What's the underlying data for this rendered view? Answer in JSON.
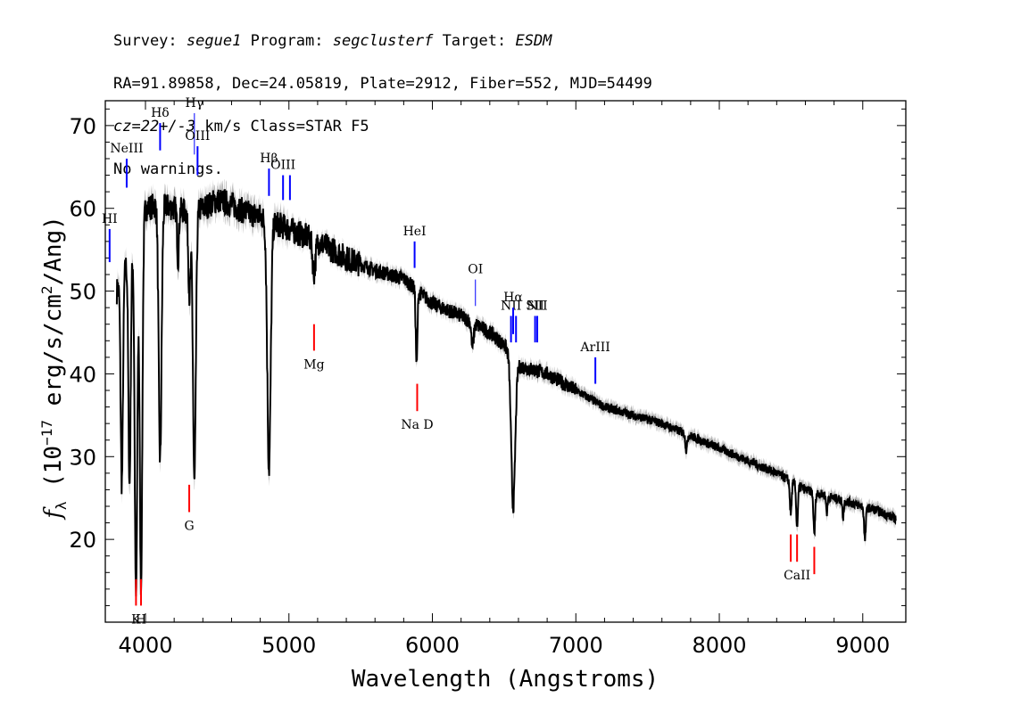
{
  "header": {
    "survey_key": "Survey:",
    "survey": "segue1",
    "program_key": "Program:",
    "program": "segclusterf",
    "target_key": "Target:",
    "target": "ESDM",
    "line2": "RA=91.89858, Dec=24.05819, Plate=2912, Fiber=552, MJD=54499",
    "cz": "cz=22+/-3",
    "cz_rest": "km/s Class=STAR F5",
    "line4": "No warnings."
  },
  "chart_data": {
    "type": "line",
    "xlabel": "Wavelength (Angstroms)",
    "ylabel": "fλ (10^-17 erg/s/cm^2/Ang)",
    "xlim": [
      3720,
      9300
    ],
    "ylim": [
      10,
      73
    ],
    "x_ticks": [
      4000,
      5000,
      6000,
      7000,
      8000,
      9000
    ],
    "y_ticks": [
      20,
      30,
      40,
      50,
      60,
      70
    ],
    "grid": false,
    "colors": {
      "spectrum": "#000000",
      "error_band": "#b0b0b0",
      "emission": "#0000ff",
      "absorption": "#ff0000"
    },
    "continuum": [
      [
        3800,
        50
      ],
      [
        3900,
        55
      ],
      [
        4000,
        60
      ],
      [
        4100,
        60.5
      ],
      [
        4200,
        60
      ],
      [
        4300,
        59.5
      ],
      [
        4400,
        60
      ],
      [
        4500,
        61
      ],
      [
        4600,
        60.5
      ],
      [
        4700,
        59.5
      ],
      [
        4800,
        59
      ],
      [
        5000,
        57.5
      ],
      [
        5200,
        56
      ],
      [
        5400,
        54
      ],
      [
        5600,
        52.5
      ],
      [
        5800,
        51.5
      ],
      [
        6000,
        48.5
      ],
      [
        6200,
        47
      ],
      [
        6400,
        45
      ],
      [
        6500,
        43.5
      ],
      [
        6600,
        41
      ],
      [
        6800,
        40
      ],
      [
        7000,
        38
      ],
      [
        7200,
        36
      ],
      [
        7400,
        35
      ],
      [
        7600,
        34
      ],
      [
        7800,
        32.5
      ],
      [
        8000,
        31
      ],
      [
        8200,
        29.5
      ],
      [
        8400,
        28
      ],
      [
        8600,
        26
      ],
      [
        8800,
        25
      ],
      [
        9000,
        24
      ],
      [
        9100,
        23.5
      ],
      [
        9230,
        22.5
      ]
    ],
    "absorption_features": [
      {
        "x": 3835,
        "depth": 25,
        "width": 8
      },
      {
        "x": 3889,
        "depth": 28,
        "width": 8
      },
      {
        "x": 3934,
        "depth": 44,
        "width": 9
      },
      {
        "x": 3969,
        "depth": 44,
        "width": 9
      },
      {
        "x": 4102,
        "depth": 31,
        "width": 10
      },
      {
        "x": 4227,
        "depth": 6,
        "width": 6
      },
      {
        "x": 4307,
        "depth": 10,
        "width": 8
      },
      {
        "x": 4341,
        "depth": 33,
        "width": 10
      },
      {
        "x": 4861,
        "depth": 30,
        "width": 12
      },
      {
        "x": 5175,
        "depth": 4,
        "width": 10
      },
      {
        "x": 5890,
        "depth": 9,
        "width": 6
      },
      {
        "x": 6280,
        "depth": 3,
        "width": 8
      },
      {
        "x": 6563,
        "depth": 18,
        "width": 14
      },
      {
        "x": 7770,
        "depth": 2,
        "width": 6
      },
      {
        "x": 8498,
        "depth": 4,
        "width": 6
      },
      {
        "x": 8542,
        "depth": 5,
        "width": 6
      },
      {
        "x": 8662,
        "depth": 5,
        "width": 6
      },
      {
        "x": 8750,
        "depth": 2,
        "width": 5
      },
      {
        "x": 8863,
        "depth": 2,
        "width": 5
      },
      {
        "x": 9015,
        "depth": 4,
        "width": 6
      }
    ],
    "emission_lines": [
      {
        "label": "HI",
        "x": 3750,
        "y_bottom": 53.5,
        "y_top": 57.5
      },
      {
        "label": "NeIII",
        "x": 3869,
        "y_bottom": 62.5,
        "y_top": 66
      },
      {
        "label": "Hδ",
        "x": 4102,
        "y_bottom": 67,
        "y_top": 70.3
      },
      {
        "label": "Hγ",
        "x": 4341,
        "y_bottom": 66.5,
        "y_top": 71.5
      },
      {
        "label": "OIII",
        "x": 4363,
        "y_bottom": 64,
        "y_top": 67.5
      },
      {
        "label": "Hβ",
        "x": 4861,
        "y_bottom": 61.5,
        "y_top": 64.8
      },
      {
        "label": "OIII",
        "x": 4959,
        "y_bottom": 61,
        "y_top": 64
      },
      {
        "label": "",
        "x": 5007,
        "y_bottom": 61,
        "y_top": 64
      },
      {
        "label": "HeI",
        "x": 5876,
        "y_bottom": 52.8,
        "y_top": 56
      },
      {
        "label": "OI",
        "x": 6300,
        "y_bottom": 48.2,
        "y_top": 51.4
      },
      {
        "label": "NII",
        "x": 6548,
        "y_bottom": 43.8,
        "y_top": 47
      },
      {
        "label": "Hα",
        "x": 6563,
        "y_bottom": 44.8,
        "y_top": 48
      },
      {
        "label": "",
        "x": 6583,
        "y_bottom": 43.8,
        "y_top": 47
      },
      {
        "label": "SII",
        "x": 6716,
        "y_bottom": 43.8,
        "y_top": 47
      },
      {
        "label": "NII",
        "x": 6731,
        "y_bottom": 43.8,
        "y_top": 47
      },
      {
        "label": "ArIII",
        "x": 7136,
        "y_bottom": 38.8,
        "y_top": 42
      }
    ],
    "absorption_lines": [
      {
        "label": "K",
        "x": 3934,
        "y_bottom": 12,
        "y_top": 15.2
      },
      {
        "label": "H",
        "x": 3969,
        "y_bottom": 12,
        "y_top": 15.2
      },
      {
        "label": "G",
        "x": 4305,
        "y_bottom": 23.3,
        "y_top": 26.6
      },
      {
        "label": "Mg",
        "x": 5175,
        "y_bottom": 42.8,
        "y_top": 46
      },
      {
        "label": "Na D",
        "x": 5894,
        "y_bottom": 35.5,
        "y_top": 38.8
      },
      {
        "label": "",
        "x": 8498,
        "y_bottom": 17.3,
        "y_top": 20.6
      },
      {
        "label": "CaII",
        "x": 8542,
        "y_bottom": 17.3,
        "y_top": 20.6
      },
      {
        "label": "",
        "x": 8662,
        "y_bottom": 15.8,
        "y_top": 19.1
      }
    ]
  }
}
